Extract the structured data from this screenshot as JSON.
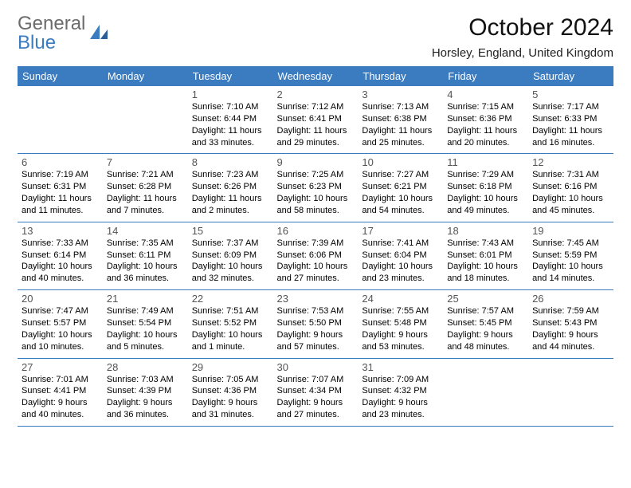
{
  "logo": {
    "word1": "General",
    "word2": "Blue"
  },
  "title": "October 2024",
  "location": "Horsley, England, United Kingdom",
  "colors": {
    "header_bg": "#3b7bbf",
    "header_fg": "#ffffff",
    "rule": "#3b7bbf",
    "logo_gray": "#6b6b6b",
    "logo_blue": "#3b7bbf"
  },
  "day_names": [
    "Sunday",
    "Monday",
    "Tuesday",
    "Wednesday",
    "Thursday",
    "Friday",
    "Saturday"
  ],
  "first_weekday_index": 2,
  "days": [
    {
      "n": 1,
      "sunrise": "7:10 AM",
      "sunset": "6:44 PM",
      "daylight": "11 hours and 33 minutes."
    },
    {
      "n": 2,
      "sunrise": "7:12 AM",
      "sunset": "6:41 PM",
      "daylight": "11 hours and 29 minutes."
    },
    {
      "n": 3,
      "sunrise": "7:13 AM",
      "sunset": "6:38 PM",
      "daylight": "11 hours and 25 minutes."
    },
    {
      "n": 4,
      "sunrise": "7:15 AM",
      "sunset": "6:36 PM",
      "daylight": "11 hours and 20 minutes."
    },
    {
      "n": 5,
      "sunrise": "7:17 AM",
      "sunset": "6:33 PM",
      "daylight": "11 hours and 16 minutes."
    },
    {
      "n": 6,
      "sunrise": "7:19 AM",
      "sunset": "6:31 PM",
      "daylight": "11 hours and 11 minutes."
    },
    {
      "n": 7,
      "sunrise": "7:21 AM",
      "sunset": "6:28 PM",
      "daylight": "11 hours and 7 minutes."
    },
    {
      "n": 8,
      "sunrise": "7:23 AM",
      "sunset": "6:26 PM",
      "daylight": "11 hours and 2 minutes."
    },
    {
      "n": 9,
      "sunrise": "7:25 AM",
      "sunset": "6:23 PM",
      "daylight": "10 hours and 58 minutes."
    },
    {
      "n": 10,
      "sunrise": "7:27 AM",
      "sunset": "6:21 PM",
      "daylight": "10 hours and 54 minutes."
    },
    {
      "n": 11,
      "sunrise": "7:29 AM",
      "sunset": "6:18 PM",
      "daylight": "10 hours and 49 minutes."
    },
    {
      "n": 12,
      "sunrise": "7:31 AM",
      "sunset": "6:16 PM",
      "daylight": "10 hours and 45 minutes."
    },
    {
      "n": 13,
      "sunrise": "7:33 AM",
      "sunset": "6:14 PM",
      "daylight": "10 hours and 40 minutes."
    },
    {
      "n": 14,
      "sunrise": "7:35 AM",
      "sunset": "6:11 PM",
      "daylight": "10 hours and 36 minutes."
    },
    {
      "n": 15,
      "sunrise": "7:37 AM",
      "sunset": "6:09 PM",
      "daylight": "10 hours and 32 minutes."
    },
    {
      "n": 16,
      "sunrise": "7:39 AM",
      "sunset": "6:06 PM",
      "daylight": "10 hours and 27 minutes."
    },
    {
      "n": 17,
      "sunrise": "7:41 AM",
      "sunset": "6:04 PM",
      "daylight": "10 hours and 23 minutes."
    },
    {
      "n": 18,
      "sunrise": "7:43 AM",
      "sunset": "6:01 PM",
      "daylight": "10 hours and 18 minutes."
    },
    {
      "n": 19,
      "sunrise": "7:45 AM",
      "sunset": "5:59 PM",
      "daylight": "10 hours and 14 minutes."
    },
    {
      "n": 20,
      "sunrise": "7:47 AM",
      "sunset": "5:57 PM",
      "daylight": "10 hours and 10 minutes."
    },
    {
      "n": 21,
      "sunrise": "7:49 AM",
      "sunset": "5:54 PM",
      "daylight": "10 hours and 5 minutes."
    },
    {
      "n": 22,
      "sunrise": "7:51 AM",
      "sunset": "5:52 PM",
      "daylight": "10 hours and 1 minute."
    },
    {
      "n": 23,
      "sunrise": "7:53 AM",
      "sunset": "5:50 PM",
      "daylight": "9 hours and 57 minutes."
    },
    {
      "n": 24,
      "sunrise": "7:55 AM",
      "sunset": "5:48 PM",
      "daylight": "9 hours and 53 minutes."
    },
    {
      "n": 25,
      "sunrise": "7:57 AM",
      "sunset": "5:45 PM",
      "daylight": "9 hours and 48 minutes."
    },
    {
      "n": 26,
      "sunrise": "7:59 AM",
      "sunset": "5:43 PM",
      "daylight": "9 hours and 44 minutes."
    },
    {
      "n": 27,
      "sunrise": "7:01 AM",
      "sunset": "4:41 PM",
      "daylight": "9 hours and 40 minutes."
    },
    {
      "n": 28,
      "sunrise": "7:03 AM",
      "sunset": "4:39 PM",
      "daylight": "9 hours and 36 minutes."
    },
    {
      "n": 29,
      "sunrise": "7:05 AM",
      "sunset": "4:36 PM",
      "daylight": "9 hours and 31 minutes."
    },
    {
      "n": 30,
      "sunrise": "7:07 AM",
      "sunset": "4:34 PM",
      "daylight": "9 hours and 27 minutes."
    },
    {
      "n": 31,
      "sunrise": "7:09 AM",
      "sunset": "4:32 PM",
      "daylight": "9 hours and 23 minutes."
    }
  ],
  "labels": {
    "sunrise": "Sunrise:",
    "sunset": "Sunset:",
    "daylight": "Daylight:"
  }
}
